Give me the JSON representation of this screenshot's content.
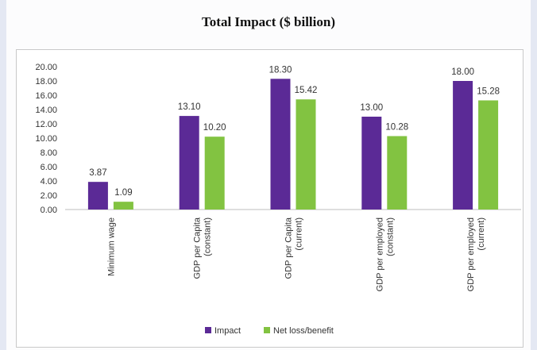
{
  "chart_data": {
    "type": "bar",
    "title": "Total Impact ($ billion)",
    "xlabel": "",
    "ylabel": "",
    "ylim": [
      0,
      20
    ],
    "yticks": [
      "0.00",
      "2.00",
      "4.00",
      "6.00",
      "8.00",
      "10.00",
      "12.00",
      "14.00",
      "16.00",
      "18.00",
      "20.00"
    ],
    "grid": false,
    "legend_position": "bottom",
    "categories": [
      [
        "Minimum wage"
      ],
      [
        "GDP per Capita",
        "(constant)"
      ],
      [
        "GDP per Capita",
        "(current)"
      ],
      [
        "GDP per employed",
        "(constant)"
      ],
      [
        "GDP per employed",
        "(current)"
      ]
    ],
    "series": [
      {
        "name": "Impact",
        "color": "#5b2a96",
        "values": [
          3.87,
          13.1,
          18.3,
          13.0,
          18.0
        ],
        "labels": [
          "3.87",
          "13.10",
          "18.30",
          "13.00",
          "18.00"
        ]
      },
      {
        "name": "Net loss/benefit",
        "color": "#82c341",
        "values": [
          1.09,
          10.2,
          15.42,
          10.28,
          15.28
        ],
        "labels": [
          "1.09",
          "10.20",
          "15.42",
          "10.28",
          "15.28"
        ]
      }
    ]
  }
}
